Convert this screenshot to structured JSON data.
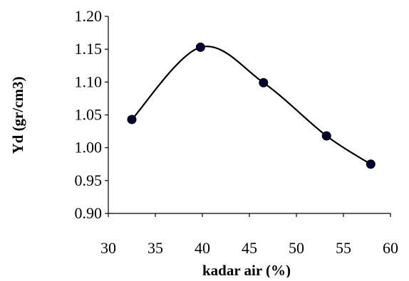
{
  "chart_data": {
    "type": "scatter",
    "title": "",
    "xlabel": "kadar air (%)",
    "ylabel": "Yd (gr/cm3)",
    "xlim": [
      30,
      60
    ],
    "ylim": [
      0.9,
      1.2
    ],
    "x_ticks": [
      "30",
      "35",
      "40",
      "45",
      "50",
      "55",
      "60"
    ],
    "y_ticks": [
      "0.90",
      "0.95",
      "1.00",
      "1.05",
      "1.10",
      "1.15",
      "1.20"
    ],
    "grid": false,
    "legend": "none",
    "smoothed_line": true,
    "series": [
      {
        "x": [
          32.5,
          39.8,
          46.5,
          53.2,
          57.9
        ],
        "y": [
          1.043,
          1.153,
          1.099,
          1.018,
          0.975
        ]
      }
    ],
    "colors": {
      "line": "#000000",
      "marker": "#000033",
      "axis": "#000000"
    }
  }
}
